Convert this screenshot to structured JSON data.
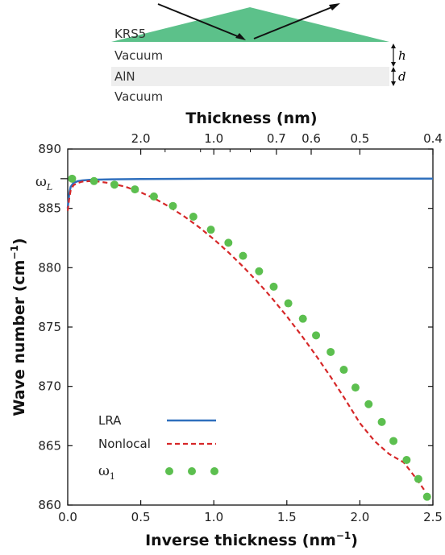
{
  "diagram": {
    "layers": [
      "KRS5",
      "Vacuum",
      "AlN",
      "Vacuum"
    ],
    "dim_h": "h",
    "dim_d": "d",
    "prism_color": "#5cc18a",
    "film_color": "#eeeeee"
  },
  "chart_data": {
    "type": "line",
    "xlabel": "Inverse thickness (nm",
    "xlabel_sup": "−1",
    "xlabel_end": ")",
    "ylabel": "Wave number (cm",
    "ylabel_sup": "−1",
    "ylabel_end": ")",
    "top_label": "Thickness (nm)",
    "xlim": [
      0.0,
      2.5
    ],
    "ylim": [
      860,
      890
    ],
    "xticks": [
      "0.0",
      "0.5",
      "1.0",
      "1.5",
      "2.0",
      "2.5"
    ],
    "yticks": [
      "860",
      "865",
      "870",
      "875",
      "880",
      "885",
      "890"
    ],
    "top_ticks": [
      {
        "label": "2.0",
        "value": 0.5
      },
      {
        "label": "1.0",
        "value": 1.0
      },
      {
        "label": "0.7",
        "value": 1.4286
      },
      {
        "label": "0.6",
        "value": 1.6667
      },
      {
        "label": "0.5",
        "value": 2.0
      },
      {
        "label": "0.4",
        "value": 2.5
      }
    ],
    "top_minor": [
      0.6667,
      0.9091,
      1.1111,
      1.25
    ],
    "omega_L": {
      "label": "ω",
      "sub": "L",
      "value": 887.5
    },
    "series": [
      {
        "name": "LRA",
        "color": "#2f6fbd",
        "style": "solid",
        "x": [
          0.0,
          0.01,
          0.02,
          0.04,
          0.07,
          0.1,
          0.15,
          0.2,
          0.3,
          0.5,
          0.8,
          1.2,
          1.6,
          2.0,
          2.5
        ],
        "y": [
          885.0,
          886.2,
          886.8,
          887.15,
          887.3,
          887.35,
          887.4,
          887.42,
          887.45,
          887.47,
          887.49,
          887.5,
          887.5,
          887.5,
          887.5
        ]
      },
      {
        "name": "Nonlocal",
        "color": "#d62728",
        "style": "dashed",
        "x": [
          0.0,
          0.01,
          0.02,
          0.04,
          0.07,
          0.1,
          0.15,
          0.2,
          0.3,
          0.4,
          0.5,
          0.6,
          0.7,
          0.8,
          0.9,
          1.0,
          1.1,
          1.2,
          1.3,
          1.4,
          1.5,
          1.6,
          1.7,
          1.8,
          1.9,
          2.0,
          2.1,
          2.2,
          2.3,
          2.4,
          2.45
        ],
        "y": [
          884.8,
          885.8,
          886.5,
          886.95,
          887.15,
          887.25,
          887.3,
          887.28,
          887.1,
          886.8,
          886.35,
          885.8,
          885.1,
          884.3,
          883.4,
          882.4,
          881.3,
          880.1,
          878.8,
          877.4,
          875.9,
          874.3,
          872.6,
          870.8,
          868.9,
          866.9,
          865.4,
          864.3,
          863.6,
          862.0,
          861.1
        ]
      },
      {
        "name": "ω",
        "name_sub": "1",
        "color": "#5cbf4f",
        "style": "markers",
        "x": [
          0.03,
          0.18,
          0.32,
          0.46,
          0.59,
          0.72,
          0.86,
          0.98,
          1.1,
          1.2,
          1.31,
          1.41,
          1.51,
          1.61,
          1.7,
          1.8,
          1.89,
          1.97,
          2.06,
          2.15,
          2.23,
          2.32,
          2.4,
          2.46
        ],
        "y": [
          887.5,
          887.3,
          887.0,
          886.6,
          886.0,
          885.2,
          884.3,
          883.2,
          882.1,
          881.0,
          879.7,
          878.4,
          877.0,
          875.7,
          874.3,
          872.9,
          871.4,
          869.9,
          868.5,
          867.0,
          865.4,
          863.8,
          862.2,
          860.7
        ]
      }
    ],
    "legend_position": "bottom-left"
  }
}
